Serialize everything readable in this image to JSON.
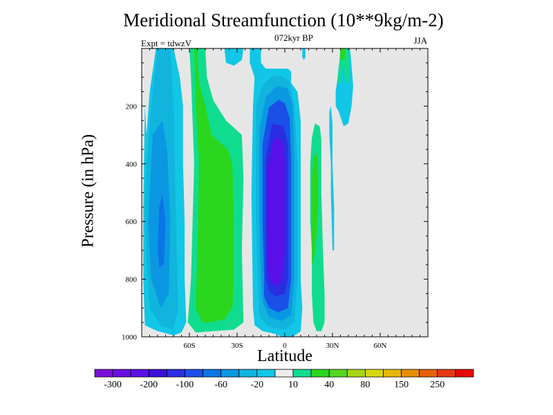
{
  "chart_data": {
    "type": "heatmap",
    "title": "Meridional Streamfunction (10**9kg/m-2)",
    "subtitle": "072kyr BP",
    "left_label": "Expt = tdwzV",
    "right_label": "JJA",
    "xlabel": "Latitude",
    "ylabel": "Pressure (in hPa)",
    "xlim": [
      -90,
      90
    ],
    "ylim": [
      0,
      1000
    ],
    "y_reversed": true,
    "x_ticks": [
      {
        "value": -60,
        "label": "60S"
      },
      {
        "value": -30,
        "label": "30S"
      },
      {
        "value": 0,
        "label": "0"
      },
      {
        "value": 30,
        "label": "30N"
      },
      {
        "value": 60,
        "label": "60N"
      }
    ],
    "y_ticks": [
      {
        "value": 200,
        "label": "200"
      },
      {
        "value": 400,
        "label": "400"
      },
      {
        "value": 600,
        "label": "600"
      },
      {
        "value": 800,
        "label": "800"
      },
      {
        "value": 1000,
        "label": "1000"
      }
    ],
    "background_color": "#e6e6e6",
    "colorbar": {
      "colors": [
        "#7a10d6",
        "#6a0ee0",
        "#5a10e8",
        "#3a10d8",
        "#2a2ee0",
        "#1a50e8",
        "#0a76e6",
        "#0a98e2",
        "#10b4dc",
        "#12c6e6",
        "#ececec",
        "#10dc90",
        "#2ad61e",
        "#56d61e",
        "#a6d616",
        "#d6d610",
        "#e6b60a",
        "#e68e0a",
        "#e6620a",
        "#e63810",
        "#e60a0a"
      ],
      "labels": [
        "-300",
        "-200",
        "-100",
        "-60",
        "-20",
        "10",
        "40",
        "80",
        "150",
        "250"
      ]
    },
    "contour_regions": [
      {
        "name": "sh-polar-cell",
        "level": -20,
        "color": "#12c6e6",
        "points": [
          [
            -89,
            550
          ],
          [
            -88,
            200
          ],
          [
            -87,
            300
          ],
          [
            -85,
            150
          ],
          [
            -81,
            0
          ],
          [
            -70,
            0
          ],
          [
            -66,
            100
          ],
          [
            -64,
            200
          ],
          [
            -64,
            400
          ],
          [
            -63,
            600
          ],
          [
            -63,
            800
          ],
          [
            -62,
            950
          ],
          [
            -65,
            985
          ],
          [
            -70,
            995
          ],
          [
            -80,
            980
          ],
          [
            -88,
            960
          ],
          [
            -89,
            800
          ]
        ]
      },
      {
        "name": "sh-polar-cell",
        "level": -60,
        "color": "#10b4dc",
        "points": [
          [
            -88,
            550
          ],
          [
            -87,
            400
          ],
          [
            -84,
            200
          ],
          [
            -80,
            0
          ],
          [
            -72,
            0
          ],
          [
            -70,
            200
          ],
          [
            -69,
            450
          ],
          [
            -68,
            700
          ],
          [
            -67,
            900
          ],
          [
            -70,
            975
          ],
          [
            -78,
            960
          ],
          [
            -85,
            900
          ],
          [
            -87,
            720
          ]
        ]
      },
      {
        "name": "sh-polar-cell",
        "level": -100,
        "color": "#0a98e2",
        "points": [
          [
            -86,
            600
          ],
          [
            -85,
            500
          ],
          [
            -83,
            300
          ],
          [
            -77,
            250
          ],
          [
            -74,
            350
          ],
          [
            -72,
            600
          ],
          [
            -73,
            850
          ],
          [
            -78,
            900
          ],
          [
            -84,
            800
          ]
        ]
      },
      {
        "name": "sh-polar-cell",
        "level": -200,
        "color": "#0a76e6",
        "points": [
          [
            -80,
            700
          ],
          [
            -79,
            550
          ],
          [
            -77,
            500
          ],
          [
            -75,
            600
          ],
          [
            -76,
            750
          ],
          [
            -79,
            760
          ]
        ]
      },
      {
        "name": "sh-ferrel-cell",
        "level": 10,
        "color": "#10dc90",
        "points": [
          [
            -60,
            0
          ],
          [
            -50,
            0
          ],
          [
            -49,
            100
          ],
          [
            -45,
            180
          ],
          [
            -37,
            250
          ],
          [
            -27,
            300
          ],
          [
            -26,
            450
          ],
          [
            -27,
            700
          ],
          [
            -26,
            950
          ],
          [
            -32,
            975
          ],
          [
            -45,
            980
          ],
          [
            -56,
            985
          ],
          [
            -61,
            950
          ],
          [
            -59,
            800
          ],
          [
            -57,
            400
          ],
          [
            -59,
            100
          ]
        ]
      },
      {
        "name": "sh-ferrel-cell",
        "level": 40,
        "color": "#2ad61e",
        "points": [
          [
            -57,
            0
          ],
          [
            -55,
            0
          ],
          [
            -54,
            120
          ],
          [
            -50,
            200
          ],
          [
            -46,
            300
          ],
          [
            -36,
            350
          ],
          [
            -33,
            400
          ],
          [
            -32,
            600
          ],
          [
            -32,
            800
          ],
          [
            -33,
            900
          ],
          [
            -38,
            940
          ],
          [
            -47,
            950
          ],
          [
            -52,
            950
          ],
          [
            -56,
            900
          ],
          [
            -55,
            700
          ],
          [
            -54,
            400
          ],
          [
            -56,
            200
          ]
        ]
      },
      {
        "name": "hadley-cell",
        "level": -20,
        "color": "#12c6e6",
        "points": [
          [
            -22,
            0
          ],
          [
            -15,
            0
          ],
          [
            -15,
            50
          ],
          [
            -12,
            70
          ],
          [
            2,
            70
          ],
          [
            4,
            80
          ],
          [
            4,
            120
          ],
          [
            8,
            150
          ],
          [
            10,
            250
          ],
          [
            10,
            400
          ],
          [
            10,
            650
          ],
          [
            10,
            800
          ],
          [
            11,
            900
          ],
          [
            10,
            980
          ],
          [
            5,
            1000
          ],
          [
            -2,
            1000
          ],
          [
            -6,
            990
          ],
          [
            -14,
            980
          ],
          [
            -19,
            960
          ],
          [
            -20,
            900
          ],
          [
            -21,
            500
          ],
          [
            -20,
            200
          ],
          [
            -19,
            100
          ],
          [
            -22,
            50
          ]
        ]
      },
      {
        "name": "hadley-cell",
        "level": -60,
        "color": "#10b4dc",
        "points": [
          [
            -18,
            600
          ],
          [
            -18,
            200
          ],
          [
            -14,
            130
          ],
          [
            -8,
            95
          ],
          [
            -2,
            95
          ],
          [
            3,
            115
          ],
          [
            6,
            200
          ],
          [
            8,
            400
          ],
          [
            8,
            800
          ],
          [
            6,
            950
          ],
          [
            0,
            975
          ],
          [
            -10,
            965
          ],
          [
            -16,
            930
          ],
          [
            -17,
            800
          ]
        ]
      },
      {
        "name": "hadley-cell",
        "level": -100,
        "color": "#0a98e2",
        "points": [
          [
            -16,
            600
          ],
          [
            -16,
            280
          ],
          [
            -12,
            170
          ],
          [
            -5,
            130
          ],
          [
            2,
            140
          ],
          [
            5,
            200
          ],
          [
            6,
            400
          ],
          [
            6,
            800
          ],
          [
            4,
            925
          ],
          [
            -2,
            945
          ],
          [
            -10,
            930
          ],
          [
            -14,
            880
          ],
          [
            -15,
            800
          ]
        ]
      },
      {
        "name": "hadley-cell",
        "level": -200,
        "color": "#1a50e8",
        "points": [
          [
            -14,
            600
          ],
          [
            -14,
            330
          ],
          [
            -10,
            205
          ],
          [
            -4,
            178
          ],
          [
            0,
            190
          ],
          [
            3,
            240
          ],
          [
            4,
            400
          ],
          [
            4,
            800
          ],
          [
            2,
            900
          ],
          [
            -4,
            915
          ],
          [
            -10,
            900
          ],
          [
            -13,
            860
          ],
          [
            -13,
            800
          ]
        ]
      },
      {
        "name": "hadley-cell",
        "level": -300,
        "color": "#2a2ee0",
        "points": [
          [
            -12,
            600
          ],
          [
            -12,
            380
          ],
          [
            -8,
            262
          ],
          [
            -1,
            268
          ],
          [
            2,
            330
          ],
          [
            2,
            500
          ],
          [
            2,
            800
          ],
          [
            0,
            850
          ],
          [
            -6,
            860
          ],
          [
            -10,
            840
          ],
          [
            -12,
            800
          ]
        ]
      },
      {
        "name": "hadley-cell",
        "level": -400,
        "color": "#5a10e8",
        "points": [
          [
            -11,
            600
          ],
          [
            -11,
            420
          ],
          [
            -7,
            312
          ],
          [
            -2,
            318
          ],
          [
            0,
            380
          ],
          [
            0,
            550
          ],
          [
            0,
            700
          ],
          [
            -2,
            810
          ],
          [
            -6,
            825
          ],
          [
            -10,
            800
          ],
          [
            -11,
            720
          ]
        ]
      },
      {
        "name": "nh-ferrel-cell",
        "level": 10,
        "color": "#10dc90",
        "points": [
          [
            16,
            600
          ],
          [
            16,
            400
          ],
          [
            17,
            310
          ],
          [
            19,
            260
          ],
          [
            22,
            270
          ],
          [
            23,
            320
          ],
          [
            23,
            500
          ],
          [
            24,
            700
          ],
          [
            25,
            850
          ],
          [
            25,
            950
          ],
          [
            23,
            980
          ],
          [
            20,
            980
          ],
          [
            18,
            950
          ],
          [
            17,
            850
          ],
          [
            17,
            700
          ]
        ]
      },
      {
        "name": "nh-ferrel-cell",
        "level": 40,
        "color": "#2ad61e",
        "points": [
          [
            17,
            750
          ],
          [
            17,
            600
          ],
          [
            17,
            450
          ],
          [
            18,
            380
          ],
          [
            20,
            360
          ],
          [
            21,
            420
          ],
          [
            21,
            550
          ],
          [
            20,
            650
          ],
          [
            19,
            700
          ],
          [
            18,
            740
          ]
        ]
      },
      {
        "name": "nh-cell-2",
        "level": -20,
        "color": "#12c6e6",
        "points": [
          [
            30,
            700
          ],
          [
            29,
            500
          ],
          [
            29,
            400
          ],
          [
            28,
            300
          ],
          [
            28,
            220
          ],
          [
            29,
            200
          ],
          [
            30,
            260
          ],
          [
            30,
            400
          ],
          [
            31,
            550
          ],
          [
            31,
            700
          ]
        ]
      },
      {
        "name": "nh-cell-3",
        "level": -20,
        "color": "#12c6e6",
        "points": [
          [
            32,
            200
          ],
          [
            32,
            150
          ],
          [
            33,
            110
          ],
          [
            34,
            60
          ],
          [
            35,
            30
          ],
          [
            38,
            0
          ],
          [
            41,
            0
          ],
          [
            42,
            60
          ],
          [
            43,
            130
          ],
          [
            42,
            200
          ],
          [
            40,
            260
          ],
          [
            37,
            270
          ],
          [
            34,
            220
          ]
        ]
      },
      {
        "name": "nh-cell-3",
        "level": 10,
        "color": "#10dc90",
        "points": [
          [
            33,
            120
          ],
          [
            34,
            70
          ],
          [
            35,
            0
          ],
          [
            40,
            0
          ],
          [
            41,
            60
          ],
          [
            40,
            120
          ],
          [
            38,
            120
          ],
          [
            37,
            60
          ],
          [
            36,
            80
          ],
          [
            35,
            120
          ]
        ]
      },
      {
        "name": "nh-cell-3",
        "level": 40,
        "color": "#2ad61e",
        "points": [
          [
            35,
            40
          ],
          [
            35,
            0
          ],
          [
            38,
            0
          ],
          [
            38,
            30
          ],
          [
            37,
            40
          ]
        ]
      },
      {
        "name": "high-lat-cell-1",
        "level": -20,
        "color": "#12c6e6",
        "points": [
          [
            -38,
            0
          ],
          [
            -26,
            0
          ],
          [
            -27,
            40
          ],
          [
            -32,
            60
          ],
          [
            -37,
            50
          ]
        ]
      },
      {
        "name": "high-lat-cell-2",
        "level": -20,
        "color": "#12c6e6",
        "points": [
          [
            11,
            0
          ],
          [
            13,
            0
          ],
          [
            13,
            30
          ],
          [
            12,
            40
          ],
          [
            11,
            30
          ]
        ]
      }
    ]
  }
}
